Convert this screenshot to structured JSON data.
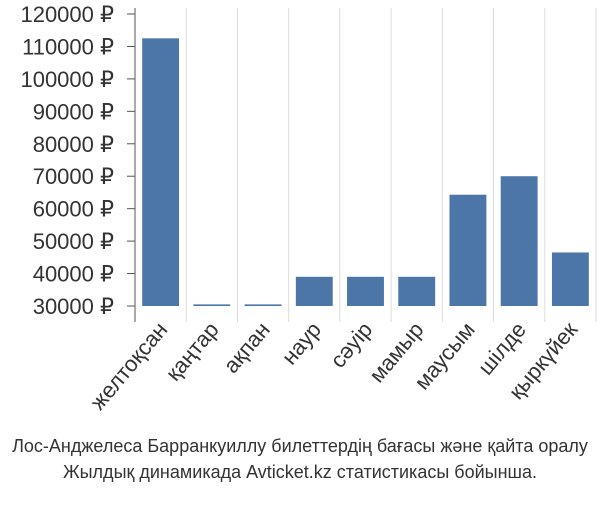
{
  "chart_data": {
    "type": "bar",
    "categories": [
      "желтоқсан",
      "қаңтар",
      "ақпан",
      "наур",
      "сәуір",
      "мамыр",
      "маусым",
      "шілде",
      "қыркүйек"
    ],
    "values": [
      112500,
      30500,
      30500,
      39000,
      39000,
      39000,
      64300,
      70000,
      46500
    ],
    "y_ticks": [
      "30000 ₽",
      "40000 ₽",
      "50000 ₽",
      "60000 ₽",
      "70000 ₽",
      "80000 ₽",
      "90000 ₽",
      "100000 ₽",
      "110000 ₽",
      "120000 ₽"
    ],
    "ylim": [
      30000,
      120000
    ],
    "title": "",
    "xlabel": "",
    "ylabel": "",
    "grid": "vertical lines",
    "bar_color": "#4d76a8",
    "grid_color": "#dddddd",
    "axis_color": "#555555"
  },
  "caption": {
    "line1": "Лос-Анджелеса Барранкуиллу билеттердің бағасы және қайта оралу",
    "line2": "Жылдық динамикада Avticket.kz статистикасы бойынша."
  }
}
